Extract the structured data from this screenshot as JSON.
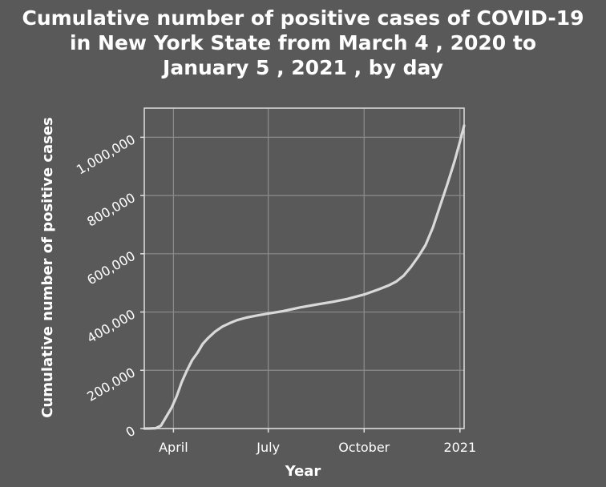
{
  "chart_data": {
    "type": "line",
    "title_lines": [
      "Cumulative number of positive cases of COVID-19",
      "in New York State from March 4 , 2020 to",
      "January 5 , 2021 , by day"
    ],
    "xlabel": "Year",
    "ylabel": "Cumulative number of positive cases",
    "x_ticks": [
      {
        "label": "April",
        "date": "2020-04-01"
      },
      {
        "label": "July",
        "date": "2020-07-01"
      },
      {
        "label": "October",
        "date": "2020-10-01"
      },
      {
        "label": "2021",
        "date": "2021-01-01"
      }
    ],
    "y_ticks": [
      {
        "label": "0",
        "value": 0
      },
      {
        "label": "200,000",
        "value": 200000
      },
      {
        "label": "400,000",
        "value": 400000
      },
      {
        "label": "600,000",
        "value": 600000
      },
      {
        "label": "800,000",
        "value": 800000
      },
      {
        "label": "1,000,000",
        "value": 1000000
      }
    ],
    "xlim": [
      "2020-03-04",
      "2021-01-05"
    ],
    "ylim": [
      0,
      1100000
    ],
    "grid": true,
    "colors": {
      "background": "#595959",
      "line": "#d9d9d9",
      "grid": "#8c8c8c",
      "axis": "#e0e0e0"
    },
    "series": [
      {
        "points": [
          {
            "date": "2020-03-04",
            "value": 0
          },
          {
            "date": "2020-03-10",
            "value": 200
          },
          {
            "date": "2020-03-15",
            "value": 1000
          },
          {
            "date": "2020-03-20",
            "value": 10000
          },
          {
            "date": "2020-03-25",
            "value": 40000
          },
          {
            "date": "2020-03-30",
            "value": 70000
          },
          {
            "date": "2020-04-04",
            "value": 110000
          },
          {
            "date": "2020-04-09",
            "value": 160000
          },
          {
            "date": "2020-04-14",
            "value": 200000
          },
          {
            "date": "2020-04-19",
            "value": 235000
          },
          {
            "date": "2020-04-24",
            "value": 260000
          },
          {
            "date": "2020-04-29",
            "value": 290000
          },
          {
            "date": "2020-05-04",
            "value": 310000
          },
          {
            "date": "2020-05-11",
            "value": 333000
          },
          {
            "date": "2020-05-18",
            "value": 350000
          },
          {
            "date": "2020-05-25",
            "value": 362000
          },
          {
            "date": "2020-06-01",
            "value": 372000
          },
          {
            "date": "2020-06-10",
            "value": 381000
          },
          {
            "date": "2020-06-20",
            "value": 388000
          },
          {
            "date": "2020-07-01",
            "value": 395000
          },
          {
            "date": "2020-07-15",
            "value": 403000
          },
          {
            "date": "2020-08-01",
            "value": 416000
          },
          {
            "date": "2020-08-15",
            "value": 425000
          },
          {
            "date": "2020-09-01",
            "value": 435000
          },
          {
            "date": "2020-09-15",
            "value": 445000
          },
          {
            "date": "2020-10-01",
            "value": 460000
          },
          {
            "date": "2020-10-15",
            "value": 478000
          },
          {
            "date": "2020-10-25",
            "value": 492000
          },
          {
            "date": "2020-11-01",
            "value": 505000
          },
          {
            "date": "2020-11-08",
            "value": 525000
          },
          {
            "date": "2020-11-15",
            "value": 555000
          },
          {
            "date": "2020-11-22",
            "value": 590000
          },
          {
            "date": "2020-11-29",
            "value": 630000
          },
          {
            "date": "2020-12-06",
            "value": 690000
          },
          {
            "date": "2020-12-13",
            "value": 765000
          },
          {
            "date": "2020-12-20",
            "value": 840000
          },
          {
            "date": "2020-12-27",
            "value": 920000
          },
          {
            "date": "2021-01-01",
            "value": 985000
          },
          {
            "date": "2021-01-05",
            "value": 1040000
          }
        ]
      }
    ]
  }
}
